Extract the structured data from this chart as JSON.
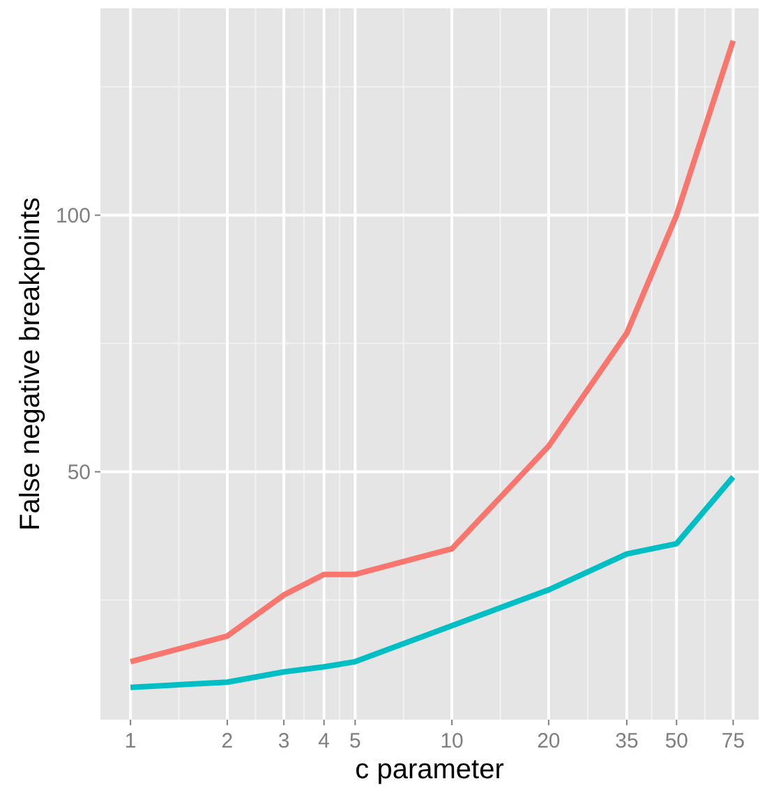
{
  "chart_data": {
    "type": "line",
    "xlabel": "c parameter",
    "ylabel": "False negative breakpoints",
    "x": [
      1,
      2,
      3,
      4,
      5,
      10,
      20,
      35,
      50,
      75
    ],
    "series": [
      {
        "color": "#f8766d",
        "values": [
          13,
          18,
          26,
          30,
          30,
          35,
          55,
          77,
          100,
          134
        ]
      },
      {
        "color": "#00bfc4",
        "values": [
          8,
          9,
          11,
          12,
          13,
          20,
          27,
          34,
          36,
          49
        ]
      }
    ],
    "log": "x",
    "xlim": [
      0.806,
      90
    ],
    "xticks": [
      1,
      2,
      3,
      4,
      5,
      10,
      20,
      35,
      50,
      75
    ],
    "ylim": [
      1.7,
      140.3
    ],
    "yticks": [
      50,
      100
    ],
    "grid": true,
    "line_style": "solid"
  }
}
